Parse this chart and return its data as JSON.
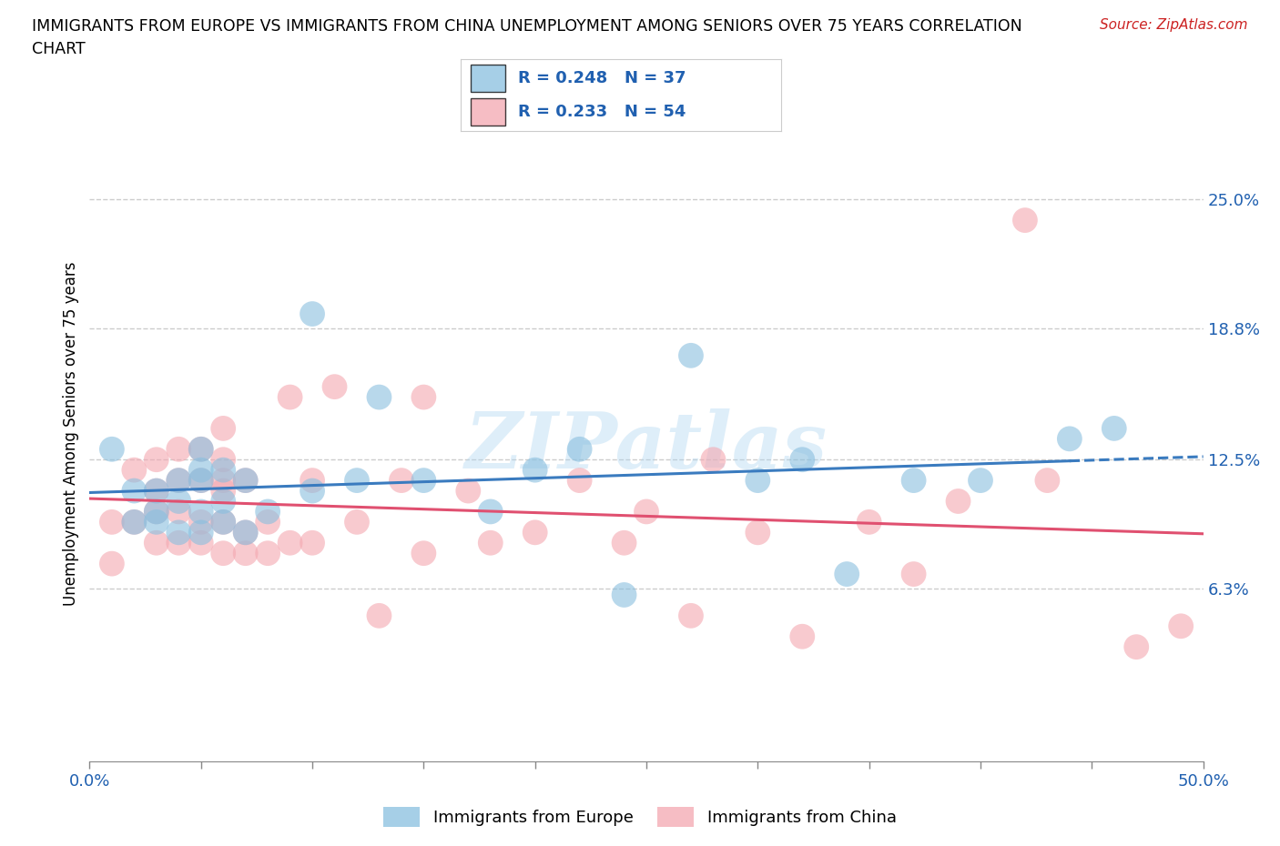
{
  "title_line1": "IMMIGRANTS FROM EUROPE VS IMMIGRANTS FROM CHINA UNEMPLOYMENT AMONG SENIORS OVER 75 YEARS CORRELATION",
  "title_line2": "CHART",
  "source": "Source: ZipAtlas.com",
  "ylabel": "Unemployment Among Seniors over 75 years",
  "xlim": [
    0.0,
    0.5
  ],
  "ylim": [
    -0.02,
    0.295
  ],
  "xtick_positions": [
    0.0,
    0.05,
    0.1,
    0.15,
    0.2,
    0.25,
    0.3,
    0.35,
    0.4,
    0.45,
    0.5
  ],
  "xticklabels": [
    "0.0%",
    "",
    "",
    "",
    "",
    "",
    "",
    "",
    "",
    "",
    "50.0%"
  ],
  "ytick_positions": [
    0.063,
    0.125,
    0.188,
    0.25
  ],
  "ytick_labels": [
    "6.3%",
    "12.5%",
    "18.8%",
    "25.0%"
  ],
  "europe_color": "#89bfdf",
  "china_color": "#f4a7b0",
  "europe_line_color": "#3a7bbf",
  "china_line_color": "#e05070",
  "europe_R": 0.248,
  "europe_N": 37,
  "china_R": 0.233,
  "china_N": 54,
  "europe_scatter_x": [
    0.01,
    0.02,
    0.02,
    0.03,
    0.03,
    0.03,
    0.04,
    0.04,
    0.04,
    0.05,
    0.05,
    0.05,
    0.05,
    0.05,
    0.06,
    0.06,
    0.06,
    0.07,
    0.07,
    0.08,
    0.1,
    0.1,
    0.12,
    0.13,
    0.15,
    0.18,
    0.2,
    0.22,
    0.24,
    0.27,
    0.3,
    0.32,
    0.34,
    0.37,
    0.4,
    0.44,
    0.46
  ],
  "europe_scatter_y": [
    0.13,
    0.095,
    0.11,
    0.095,
    0.1,
    0.11,
    0.09,
    0.105,
    0.115,
    0.09,
    0.1,
    0.115,
    0.12,
    0.13,
    0.095,
    0.105,
    0.12,
    0.09,
    0.115,
    0.1,
    0.11,
    0.195,
    0.115,
    0.155,
    0.115,
    0.1,
    0.12,
    0.13,
    0.06,
    0.175,
    0.115,
    0.125,
    0.07,
    0.115,
    0.115,
    0.135,
    0.14
  ],
  "china_scatter_x": [
    0.01,
    0.01,
    0.02,
    0.02,
    0.03,
    0.03,
    0.03,
    0.03,
    0.04,
    0.04,
    0.04,
    0.04,
    0.05,
    0.05,
    0.05,
    0.05,
    0.06,
    0.06,
    0.06,
    0.06,
    0.06,
    0.06,
    0.07,
    0.07,
    0.07,
    0.08,
    0.08,
    0.09,
    0.09,
    0.1,
    0.1,
    0.11,
    0.12,
    0.13,
    0.14,
    0.15,
    0.15,
    0.17,
    0.18,
    0.2,
    0.22,
    0.24,
    0.25,
    0.27,
    0.28,
    0.3,
    0.32,
    0.35,
    0.37,
    0.39,
    0.42,
    0.43,
    0.47,
    0.49
  ],
  "china_scatter_y": [
    0.075,
    0.095,
    0.095,
    0.12,
    0.085,
    0.1,
    0.11,
    0.125,
    0.085,
    0.1,
    0.115,
    0.13,
    0.085,
    0.095,
    0.115,
    0.13,
    0.08,
    0.095,
    0.11,
    0.115,
    0.125,
    0.14,
    0.08,
    0.09,
    0.115,
    0.08,
    0.095,
    0.085,
    0.155,
    0.085,
    0.115,
    0.16,
    0.095,
    0.05,
    0.115,
    0.08,
    0.155,
    0.11,
    0.085,
    0.09,
    0.115,
    0.085,
    0.1,
    0.05,
    0.125,
    0.09,
    0.04,
    0.095,
    0.07,
    0.105,
    0.24,
    0.115,
    0.035,
    0.045
  ]
}
